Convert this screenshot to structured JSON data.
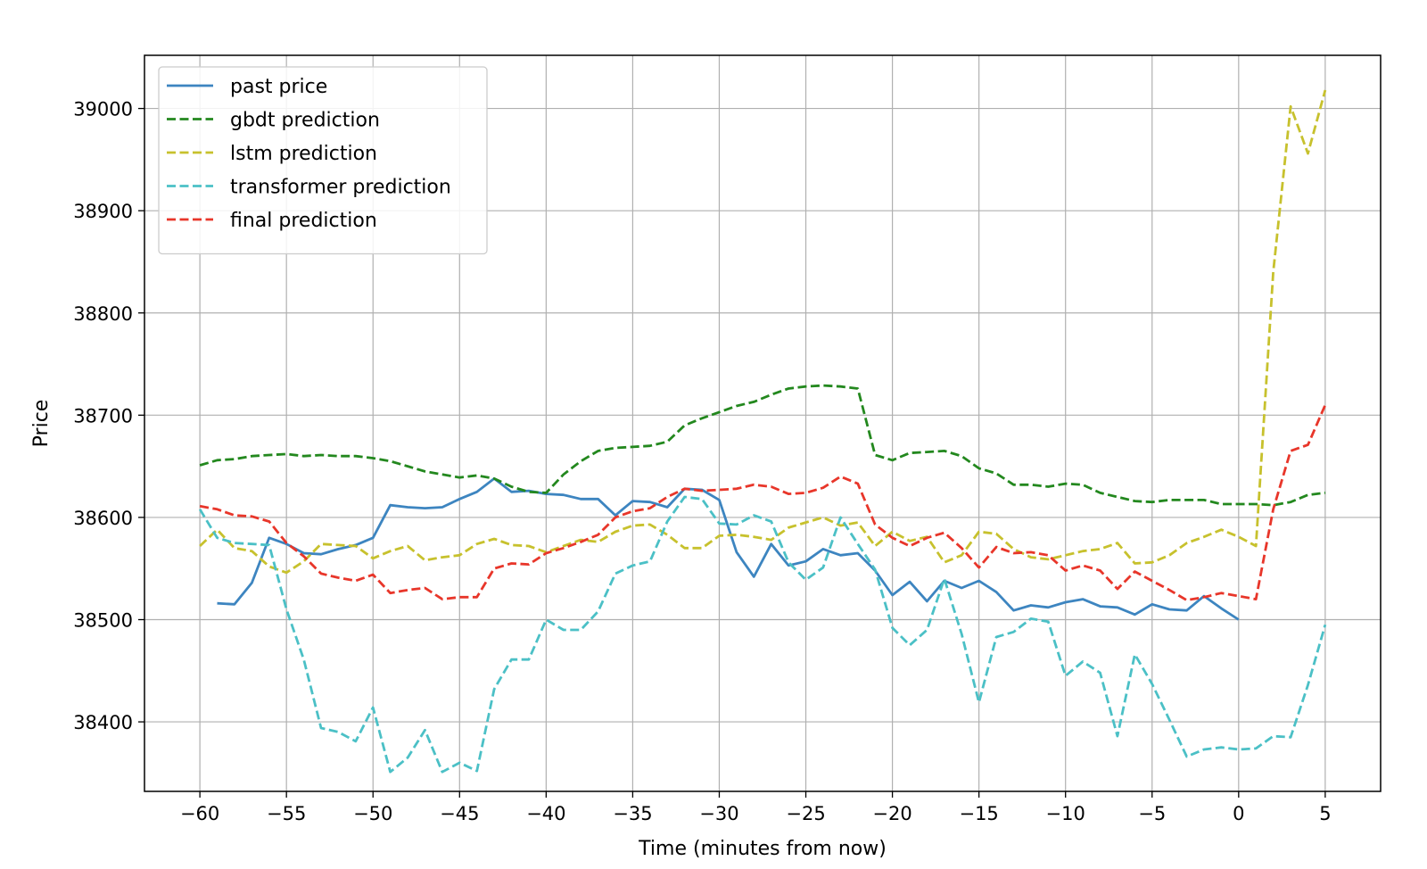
{
  "chart_data": {
    "type": "line",
    "title": "",
    "xlabel": "Time (minutes from now)",
    "ylabel": "Price",
    "xlim": [
      -63.2,
      8.2
    ],
    "ylim": [
      38332,
      39052
    ],
    "xticks": [
      -60,
      -55,
      -50,
      -45,
      -40,
      -35,
      -30,
      -25,
      -20,
      -15,
      -10,
      -5,
      0,
      5
    ],
    "xtick_labels": [
      "−60",
      "−55",
      "−50",
      "−45",
      "−40",
      "−35",
      "−30",
      "−25",
      "−20",
      "−15",
      "−10",
      "−5",
      "0",
      "5"
    ],
    "yticks": [
      38400,
      38500,
      38600,
      38700,
      38800,
      38900,
      39000
    ],
    "ytick_labels": [
      "38400",
      "38500",
      "38600",
      "38700",
      "38800",
      "38900",
      "39000"
    ],
    "grid": true,
    "legend_position": "top-left",
    "series": [
      {
        "name": "past price",
        "color": "#3d85c0",
        "style": "solid",
        "x": [
          -59,
          -58,
          -57,
          -56,
          -55,
          -54,
          -53,
          -52,
          -51,
          -50,
          -49,
          -48,
          -47,
          -46,
          -45,
          -44,
          -43,
          -42,
          -41,
          -40,
          -39,
          -38,
          -37,
          -36,
          -35,
          -34,
          -33,
          -32,
          -31,
          -30,
          -29,
          -28,
          -27,
          -26,
          -25,
          -24,
          -23,
          -22,
          -21,
          -20,
          -19,
          -18,
          -17,
          -16,
          -15,
          -14,
          -13,
          -12,
          -11,
          -10,
          -9,
          -8,
          -7,
          -6,
          -5,
          -4,
          -3,
          -2,
          -1,
          0
        ],
        "y": [
          38516,
          38515,
          38536,
          38580,
          38574,
          38565,
          38564,
          38569,
          38573,
          38580,
          38612,
          38610,
          38609,
          38610,
          38618,
          38625,
          38638,
          38625,
          38626,
          38623,
          38622,
          38618,
          38618,
          38602,
          38616,
          38615,
          38610,
          38628,
          38627,
          38617,
          38566,
          38542,
          38574,
          38553,
          38557,
          38569,
          38563,
          38565,
          38548,
          38524,
          38537,
          38518,
          38538,
          38531,
          38538,
          38527,
          38509,
          38514,
          38512,
          38517,
          38520,
          38513,
          38512,
          38505,
          38515,
          38510,
          38509,
          38523,
          38511,
          38500
        ]
      },
      {
        "name": "gbdt prediction",
        "color": "#23881e",
        "style": "dashed",
        "x": [
          -60,
          -59,
          -58,
          -57,
          -56,
          -55,
          -54,
          -53,
          -52,
          -51,
          -50,
          -49,
          -48,
          -47,
          -46,
          -45,
          -44,
          -43,
          -42,
          -41,
          -40,
          -39,
          -38,
          -37,
          -36,
          -35,
          -34,
          -33,
          -32,
          -31,
          -30,
          -29,
          -28,
          -27,
          -26,
          -25,
          -24,
          -23,
          -22,
          -21,
          -20,
          -19,
          -18,
          -17,
          -16,
          -15,
          -14,
          -13,
          -12,
          -11,
          -10,
          -9,
          -8,
          -7,
          -6,
          -5,
          -4,
          -3,
          -2,
          -1,
          0,
          1,
          2,
          3,
          4,
          5
        ],
        "y": [
          38651,
          38656,
          38657,
          38660,
          38661,
          38662,
          38660,
          38661,
          38660,
          38660,
          38658,
          38655,
          38650,
          38645,
          38642,
          38639,
          38641,
          38638,
          38630,
          38625,
          38624,
          38642,
          38655,
          38665,
          38668,
          38669,
          38670,
          38674,
          38690,
          38697,
          38703,
          38709,
          38713,
          38720,
          38726,
          38728,
          38729,
          38728,
          38726,
          38661,
          38656,
          38663,
          38664,
          38665,
          38660,
          38648,
          38643,
          38632,
          38632,
          38630,
          38633,
          38632,
          38624,
          38620,
          38616,
          38615,
          38617,
          38617,
          38617,
          38613,
          38613,
          38613,
          38612,
          38615,
          38622,
          38624
        ]
      },
      {
        "name": "lstm prediction",
        "color": "#c7c12d",
        "style": "dashed",
        "x": [
          -60,
          -59,
          -58,
          -57,
          -56,
          -55,
          -54,
          -53,
          -52,
          -51,
          -50,
          -49,
          -48,
          -47,
          -46,
          -45,
          -44,
          -43,
          -42,
          -41,
          -40,
          -39,
          -38,
          -37,
          -36,
          -35,
          -34,
          -33,
          -32,
          -31,
          -30,
          -29,
          -28,
          -27,
          -26,
          -25,
          -24,
          -23,
          -22,
          -21,
          -20,
          -19,
          -18,
          -17,
          -16,
          -15,
          -14,
          -13,
          -12,
          -11,
          -10,
          -9,
          -8,
          -7,
          -6,
          -5,
          -4,
          -3,
          -2,
          -1,
          0,
          1,
          2,
          3,
          4,
          5
        ],
        "y": [
          38572,
          38588,
          38570,
          38567,
          38552,
          38546,
          38557,
          38574,
          38573,
          38572,
          38560,
          38567,
          38572,
          38558,
          38561,
          38563,
          38574,
          38579,
          38573,
          38572,
          38566,
          38572,
          38578,
          38576,
          38586,
          38592,
          38593,
          38583,
          38570,
          38570,
          38582,
          38583,
          38581,
          38578,
          38590,
          38595,
          38600,
          38592,
          38595,
          38572,
          38586,
          38577,
          38581,
          38556,
          38563,
          38586,
          38584,
          38569,
          38561,
          38559,
          38563,
          38567,
          38569,
          38575,
          38555,
          38556,
          38563,
          38575,
          38581,
          38588,
          38581,
          38572,
          38840,
          39002,
          38956,
          39018
        ]
      },
      {
        "name": "transformer prediction",
        "color": "#4bc0c6",
        "style": "dashed",
        "x": [
          -60,
          -59,
          -58,
          -57,
          -56,
          -55,
          -54,
          -53,
          -52,
          -51,
          -50,
          -49,
          -48,
          -47,
          -46,
          -45,
          -44,
          -43,
          -42,
          -41,
          -40,
          -39,
          -38,
          -37,
          -36,
          -35,
          -34,
          -33,
          -32,
          -31,
          -30,
          -29,
          -28,
          -27,
          -26,
          -25,
          -24,
          -23,
          -22,
          -21,
          -20,
          -19,
          -18,
          -17,
          -16,
          -15,
          -14,
          -13,
          -12,
          -11,
          -10,
          -9,
          -8,
          -7,
          -6,
          -5,
          -4,
          -3,
          -2,
          -1,
          0,
          1,
          2,
          3,
          4,
          5
        ],
        "y": [
          38608,
          38580,
          38575,
          38574,
          38573,
          38510,
          38461,
          38394,
          38390,
          38381,
          38414,
          38351,
          38365,
          38392,
          38351,
          38360,
          38352,
          38432,
          38461,
          38461,
          38500,
          38490,
          38490,
          38508,
          38545,
          38553,
          38557,
          38596,
          38620,
          38618,
          38594,
          38593,
          38602,
          38596,
          38556,
          38539,
          38551,
          38600,
          38574,
          38549,
          38492,
          38475,
          38490,
          38540,
          38486,
          38419,
          38483,
          38488,
          38501,
          38498,
          38445,
          38459,
          38448,
          38386,
          38466,
          38437,
          38402,
          38366,
          38373,
          38375,
          38373,
          38374,
          38386,
          38385,
          38436,
          38495
        ]
      },
      {
        "name": "final prediction",
        "color": "#e8362a",
        "style": "dashed",
        "x": [
          -60,
          -59,
          -58,
          -57,
          -56,
          -55,
          -54,
          -53,
          -52,
          -51,
          -50,
          -49,
          -48,
          -47,
          -46,
          -45,
          -44,
          -43,
          -42,
          -41,
          -40,
          -39,
          -38,
          -37,
          -36,
          -35,
          -34,
          -33,
          -32,
          -31,
          -30,
          -29,
          -28,
          -27,
          -26,
          -25,
          -24,
          -23,
          -22,
          -21,
          -20,
          -19,
          -18,
          -17,
          -16,
          -15,
          -14,
          -13,
          -12,
          -11,
          -10,
          -9,
          -8,
          -7,
          -6,
          -5,
          -4,
          -3,
          -2,
          -1,
          0,
          1,
          2,
          3,
          4,
          5
        ],
        "y": [
          38611,
          38608,
          38602,
          38601,
          38596,
          38575,
          38562,
          38545,
          38541,
          38538,
          38544,
          38526,
          38529,
          38531,
          38520,
          38522,
          38522,
          38550,
          38555,
          38554,
          38565,
          38570,
          38576,
          38583,
          38600,
          38606,
          38609,
          38620,
          38628,
          38626,
          38627,
          38628,
          38632,
          38630,
          38623,
          38624,
          38629,
          38640,
          38633,
          38593,
          38580,
          38572,
          38580,
          38585,
          38570,
          38551,
          38571,
          38565,
          38566,
          38563,
          38548,
          38553,
          38548,
          38530,
          38547,
          38538,
          38529,
          38519,
          38522,
          38526,
          38523,
          38520,
          38608,
          38665,
          38671,
          38710
        ]
      }
    ]
  }
}
